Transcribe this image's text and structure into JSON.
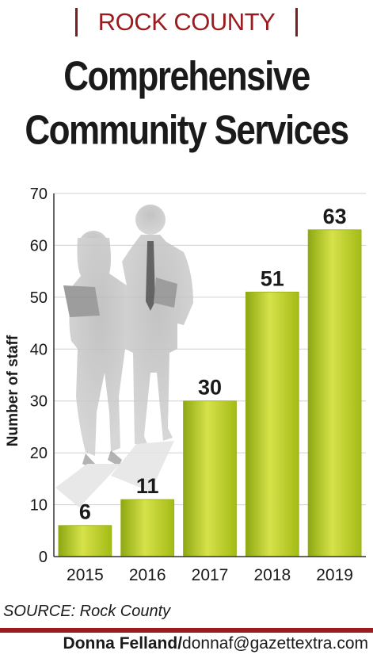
{
  "header": {
    "kicker": "ROCK COUNTY",
    "title_line1": "Comprehensive",
    "title_line2": "Community Services"
  },
  "footer": {
    "source": "SOURCE: Rock County",
    "byline_name": "Donna Felland/",
    "byline_email": "donnaf@gazettextra.com"
  },
  "colors": {
    "accent": "#9b1b1f",
    "bar": "#b5c91e"
  },
  "chart_data": {
    "type": "bar",
    "categories": [
      "2015",
      "2016",
      "2017",
      "2018",
      "2019"
    ],
    "values": [
      6,
      11,
      30,
      51,
      63
    ],
    "data_labels": [
      "6",
      "11",
      "30",
      "51",
      "63"
    ],
    "ylabel": "Number of staff",
    "ylim": [
      0,
      70
    ],
    "yticks": [
      0,
      10,
      20,
      30,
      40,
      50,
      60,
      70
    ],
    "grid": true
  }
}
